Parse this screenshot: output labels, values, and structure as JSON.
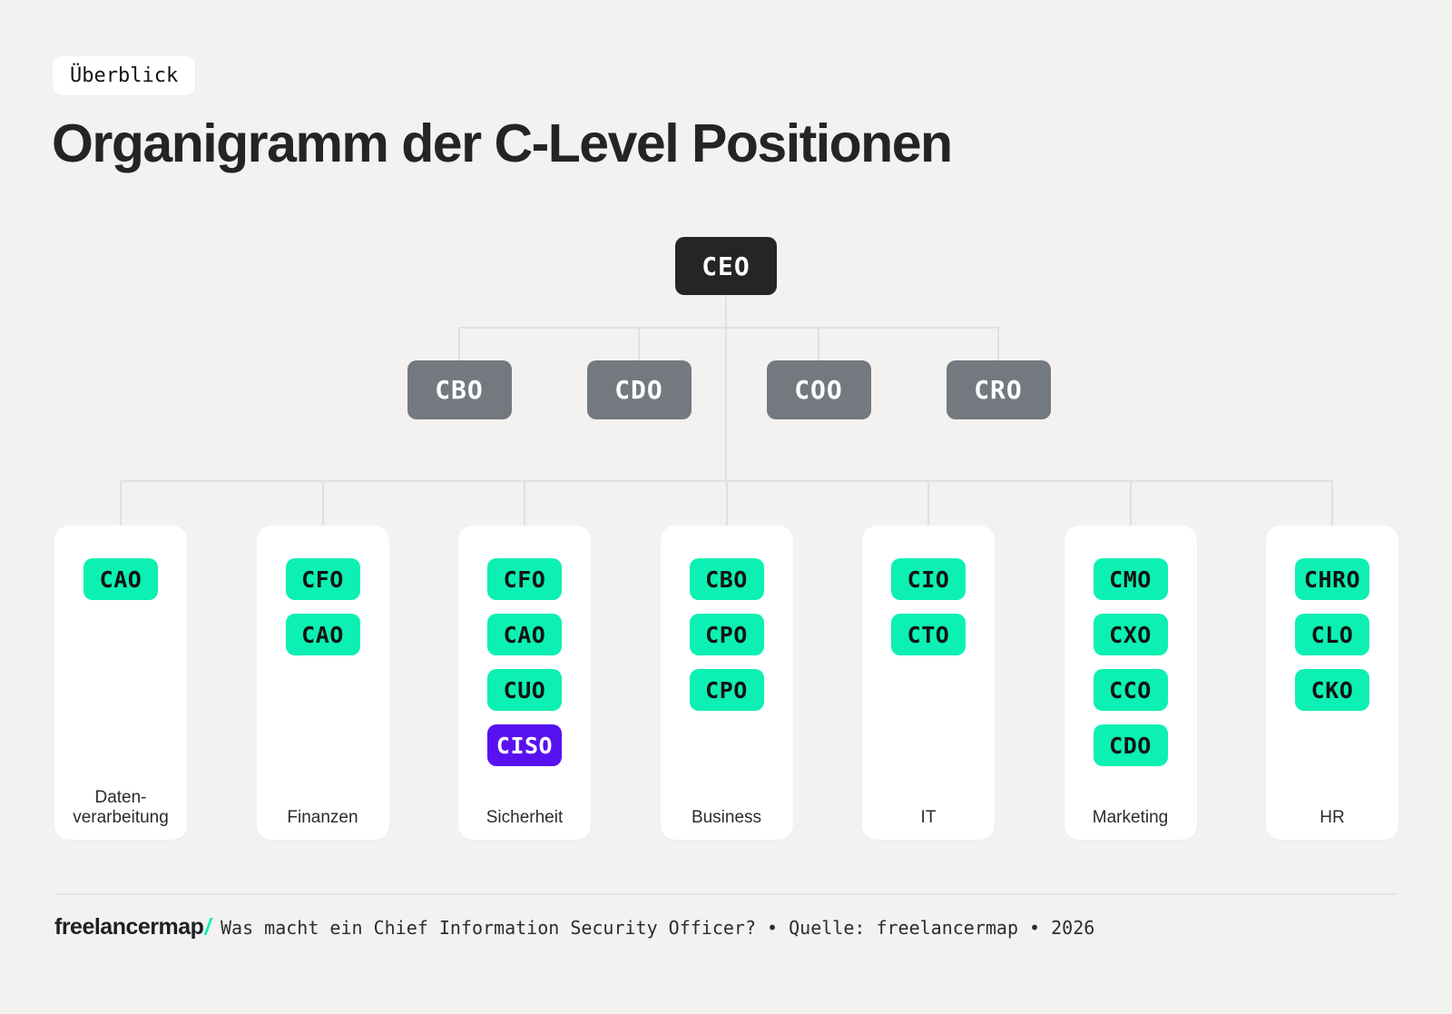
{
  "colors": {
    "background": "#f3f2f0",
    "card_white": "#ffffff",
    "node_dark": "#252525",
    "node_gray": "#74797f",
    "accent_green": "#0cf0b3",
    "highlight_purple": "#5812f0",
    "connector_gray": "#e1e0de"
  },
  "tag": {
    "label": "Überblick"
  },
  "title": "Organigramm der C-Level Positionen",
  "org": {
    "root": {
      "label": "CEO"
    },
    "level2": [
      {
        "label": "CBO"
      },
      {
        "label": "CDO"
      },
      {
        "label": "COO"
      },
      {
        "label": "CRO"
      }
    ],
    "departments": [
      {
        "name": "Datenverarbeitung",
        "label_lines": [
          "Daten-",
          "verarbeitung"
        ],
        "roles": [
          {
            "code": "CAO",
            "highlight": false
          }
        ]
      },
      {
        "name": "Finanzen",
        "label_lines": [
          "Finanzen"
        ],
        "roles": [
          {
            "code": "CFO",
            "highlight": false
          },
          {
            "code": "CAO",
            "highlight": false
          }
        ]
      },
      {
        "name": "Sicherheit",
        "label_lines": [
          "Sicherheit"
        ],
        "roles": [
          {
            "code": "CFO",
            "highlight": false
          },
          {
            "code": "CAO",
            "highlight": false
          },
          {
            "code": "CUO",
            "highlight": false
          },
          {
            "code": "CISO",
            "highlight": true
          }
        ]
      },
      {
        "name": "Business",
        "label_lines": [
          "Business"
        ],
        "roles": [
          {
            "code": "CBO",
            "highlight": false
          },
          {
            "code": "CPO",
            "highlight": false
          },
          {
            "code": "CPO",
            "highlight": false
          }
        ]
      },
      {
        "name": "IT",
        "label_lines": [
          "IT"
        ],
        "roles": [
          {
            "code": "CIO",
            "highlight": false
          },
          {
            "code": "CTO",
            "highlight": false
          }
        ]
      },
      {
        "name": "Marketing",
        "label_lines": [
          "Marketing"
        ],
        "roles": [
          {
            "code": "CMO",
            "highlight": false
          },
          {
            "code": "CXO",
            "highlight": false
          },
          {
            "code": "CCO",
            "highlight": false
          },
          {
            "code": "CDO",
            "highlight": false
          }
        ]
      },
      {
        "name": "HR",
        "label_lines": [
          "HR"
        ],
        "roles": [
          {
            "code": "CHRO",
            "highlight": false
          },
          {
            "code": "CLO",
            "highlight": false
          },
          {
            "code": "CKO",
            "highlight": false
          }
        ]
      }
    ]
  },
  "footer": {
    "logo_text": "freelancermap",
    "logo_slash": "/",
    "caption": "Was macht ein Chief Information Security Officer? • Quelle: freelancermap • 2026"
  }
}
